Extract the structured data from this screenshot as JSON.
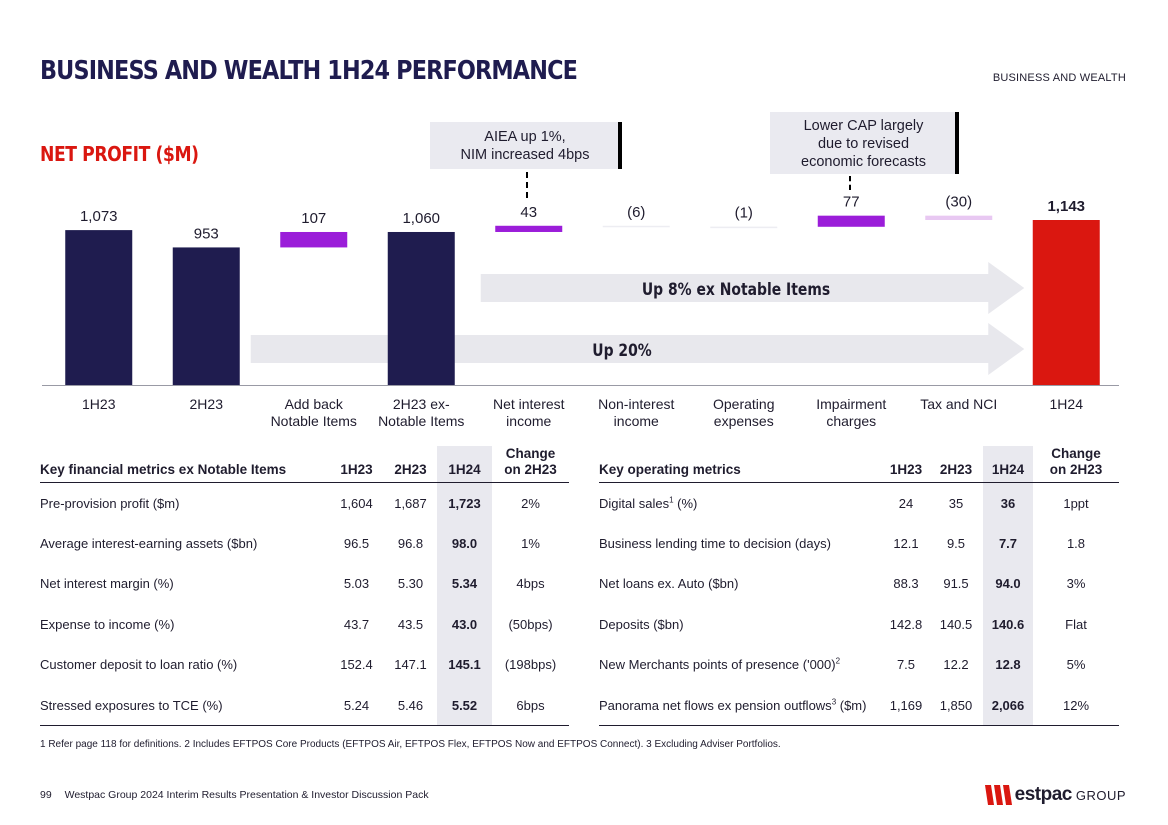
{
  "header": {
    "title": "BUSINESS AND WEALTH 1H24 PERFORMANCE",
    "section": "BUSINESS AND WEALTH",
    "chart_title": "NET PROFIT ($M)"
  },
  "callouts": {
    "aiea_line1": "AIEA up 1%,",
    "aiea_line2": "NIM increased 4bps",
    "cap_line1": "Lower CAP largely",
    "cap_line2": "due to revised",
    "cap_line3": "economic forecasts"
  },
  "chart_data": {
    "type": "waterfall",
    "title": "NET PROFIT ($M)",
    "categories": [
      "1H23",
      "2H23",
      "Add back Notable Items",
      "2H23 ex-Notable Items",
      "Net interest income",
      "Non-interest income",
      "Operating expenses",
      "Impairment charges",
      "Tax and NCI",
      "1H24"
    ],
    "category_lines": [
      [
        "1H23"
      ],
      [
        "2H23"
      ],
      [
        "Add back",
        "Notable Items"
      ],
      [
        "2H23 ex-",
        "Notable Items"
      ],
      [
        "Net interest",
        "income"
      ],
      [
        "Non-interest",
        "income"
      ],
      [
        "Operating",
        "expenses"
      ],
      [
        "Impairment",
        "charges"
      ],
      [
        "Tax and NCI"
      ],
      [
        "1H24"
      ]
    ],
    "values": [
      1073,
      953,
      107,
      1060,
      43,
      -6,
      -1,
      77,
      -30,
      1143
    ],
    "value_labels": [
      "1,073",
      "953",
      "107",
      "1,060",
      "43",
      "(6)",
      "(1)",
      "77",
      "(30)",
      "1,143"
    ],
    "kinds": [
      "total",
      "total",
      "delta",
      "total",
      "delta",
      "delta",
      "delta",
      "delta",
      "delta",
      "total"
    ],
    "colors": {
      "total": "#1f1c4f",
      "final": "#da1710",
      "delta_pos": "#9b1dd9",
      "delta_neg_small": "#ededf2",
      "delta_neg": "#e8c8f2",
      "arrow": "#e8e8ed"
    },
    "annotations": [
      "Up 8% ex Notable Items",
      "Up 20%"
    ],
    "ylim": [
      0,
      1200
    ]
  },
  "table_financial": {
    "headers": [
      "Key financial metrics ex Notable Items",
      "1H23",
      "2H23",
      "1H24",
      "Change",
      "on 2H23"
    ],
    "rows": [
      [
        "Pre-provision profit ($m)",
        "1,604",
        "1,687",
        "1,723",
        "2%"
      ],
      [
        "Average interest-earning assets ($bn)",
        "96.5",
        "96.8",
        "98.0",
        "1%"
      ],
      [
        "Net interest margin (%)",
        "5.03",
        "5.30",
        "5.34",
        "4bps"
      ],
      [
        "Expense to income (%)",
        "43.7",
        "43.5",
        "43.0",
        "(50bps)"
      ],
      [
        "Customer deposit to loan ratio (%)",
        "152.4",
        "147.1",
        "145.1",
        "(198bps)"
      ],
      [
        "Stressed exposures to TCE (%)",
        "5.24",
        "5.46",
        "5.52",
        "6bps"
      ]
    ]
  },
  "table_operating": {
    "headers": [
      "Key operating metrics",
      "1H23",
      "2H23",
      "1H24",
      "Change",
      "on 2H23"
    ],
    "rows": [
      {
        "label": "Digital sales",
        "sup": "1",
        "label2": " (%)",
        "v": [
          "24",
          "35",
          "36",
          "1ppt"
        ]
      },
      {
        "label": "Business lending time to decision (days)",
        "sup": "",
        "label2": "",
        "v": [
          "12.1",
          "9.5",
          "7.7",
          "1.8"
        ]
      },
      {
        "label": "Net loans ex. Auto ($bn)",
        "sup": "",
        "label2": "",
        "v": [
          "88.3",
          "91.5",
          "94.0",
          "3%"
        ]
      },
      {
        "label": "Deposits ($bn)",
        "sup": "",
        "label2": "",
        "v": [
          "142.8",
          "140.5",
          "140.6",
          "Flat"
        ]
      },
      {
        "label": "New Merchants points of presence ('000)",
        "sup": "2",
        "label2": "",
        "v": [
          "7.5",
          "12.2",
          "12.8",
          "5%"
        ]
      },
      {
        "label": "Panorama net flows ex pension outflows",
        "sup": "3",
        "label2": " ($m)",
        "v": [
          "1,169",
          "1,850",
          "2,066",
          "12%"
        ]
      }
    ]
  },
  "footnote": "1 Refer page 118 for definitions. 2 Includes EFTPOS Core Products (EFTPOS Air, EFTPOS Flex, EFTPOS Now and EFTPOS Connect).  3 Excluding Adviser Portfolios.",
  "footer": {
    "page": "99",
    "doc": "Westpac Group 2024 Interim Results Presentation & Investor Discussion Pack",
    "logo_mark": "W",
    "logo_name": "estpac",
    "logo_group": "GROUP"
  }
}
